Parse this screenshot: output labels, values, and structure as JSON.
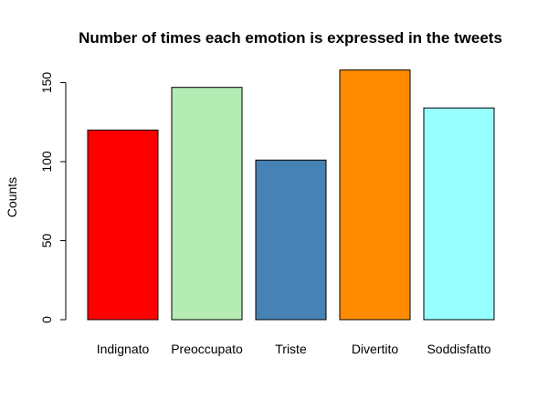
{
  "chart_data": {
    "type": "bar",
    "title": "Number of times each emotion is expressed in the tweets",
    "xlabel": "",
    "ylabel": "Counts",
    "categories": [
      "Indignato",
      "Preoccupato",
      "Triste",
      "Divertito",
      "Soddisfatto"
    ],
    "values": [
      120,
      147,
      101,
      158,
      134
    ],
    "colors": [
      "#ff0000",
      "#b4ecb4",
      "#4682b4",
      "#ff8c00",
      "#98ffff"
    ],
    "bar_border_color": "#000000",
    "yticks": [
      0,
      50,
      100,
      150
    ],
    "ytick_labels": [
      "0",
      "50",
      "100",
      "150"
    ],
    "ylim": [
      0,
      158
    ],
    "grid": false,
    "legend": "none"
  }
}
